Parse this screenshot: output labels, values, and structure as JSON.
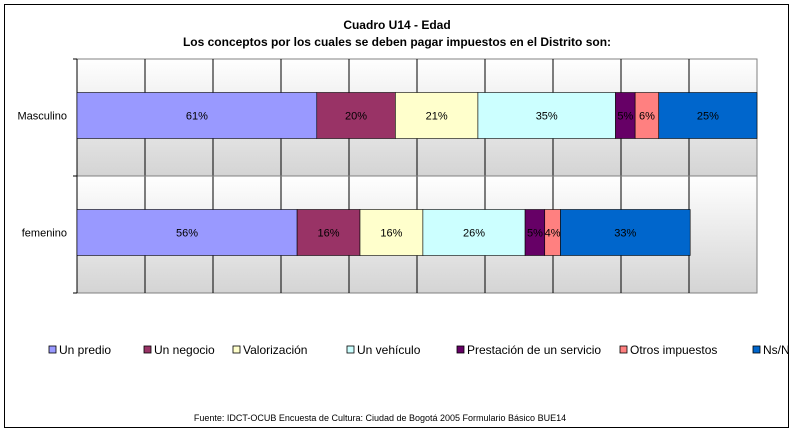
{
  "chart_data": {
    "type": "bar",
    "orientation": "horizontal",
    "stacked": true,
    "title": "Cuadro U14 - Edad",
    "subtitle": "Los conceptos por los cuales se deben pagar impuestos en el Distrito son:",
    "categories": [
      "Masculino",
      "femenino"
    ],
    "series": [
      {
        "name": "Un predio",
        "color": "#9999FF",
        "values": [
          61,
          56
        ]
      },
      {
        "name": "Un negocio",
        "color": "#993366",
        "values": [
          20,
          16
        ]
      },
      {
        "name": "Valorización",
        "color": "#FFFFCC",
        "values": [
          21,
          16
        ]
      },
      {
        "name": "Un vehículo",
        "color": "#CCFFFF",
        "values": [
          35,
          26
        ]
      },
      {
        "name": "Prestación de un servicio",
        "color": "#660066",
        "values": [
          5,
          5
        ]
      },
      {
        "name": "Otros impuestos",
        "color": "#FF8080",
        "values": [
          6,
          4
        ]
      },
      {
        "name": "Ns/Nr",
        "color": "#0066CC",
        "values": [
          25,
          33
        ]
      }
    ],
    "data_label_suffix": "%",
    "legend_position": "bottom",
    "grid": true,
    "plot_background": "#C0C0C0",
    "source": "Fuente: IDCT-OCUB Encuesta de Cultura: Ciudad de Bogotá 2005 Formulario Básico BUE14"
  }
}
